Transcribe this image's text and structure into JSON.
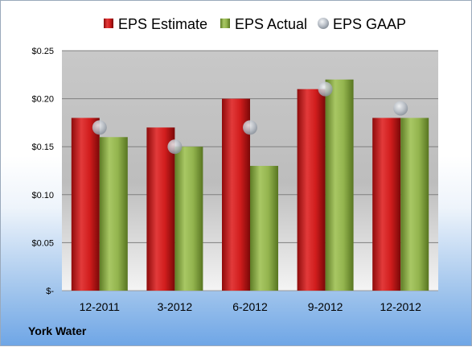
{
  "chart_data": {
    "type": "bar",
    "categories": [
      "12-2011",
      "3-2012",
      "6-2012",
      "9-2012",
      "12-2012"
    ],
    "series": [
      {
        "name": "EPS Estimate",
        "kind": "bar",
        "color": "#cc1a1a",
        "values": [
          0.18,
          0.17,
          0.2,
          0.21,
          0.18
        ]
      },
      {
        "name": "EPS Actual",
        "kind": "bar",
        "color": "#8fb04a",
        "values": [
          0.16,
          0.15,
          0.13,
          0.22,
          0.18
        ]
      },
      {
        "name": "EPS GAAP",
        "kind": "marker",
        "color": "#b8bec6",
        "values": [
          0.17,
          0.15,
          0.17,
          0.21,
          0.19
        ]
      }
    ],
    "yticks": [
      {
        "value": 0,
        "label": "$-"
      },
      {
        "value": 0.05,
        "label": "$0.05"
      },
      {
        "value": 0.1,
        "label": "$0.10"
      },
      {
        "value": 0.15,
        "label": "$0.15"
      },
      {
        "value": 0.2,
        "label": "$0.20"
      },
      {
        "value": 0.25,
        "label": "$0.25"
      }
    ],
    "ylim": [
      0,
      0.25
    ],
    "grid": true,
    "legend_position": "top"
  },
  "company": "York Water"
}
